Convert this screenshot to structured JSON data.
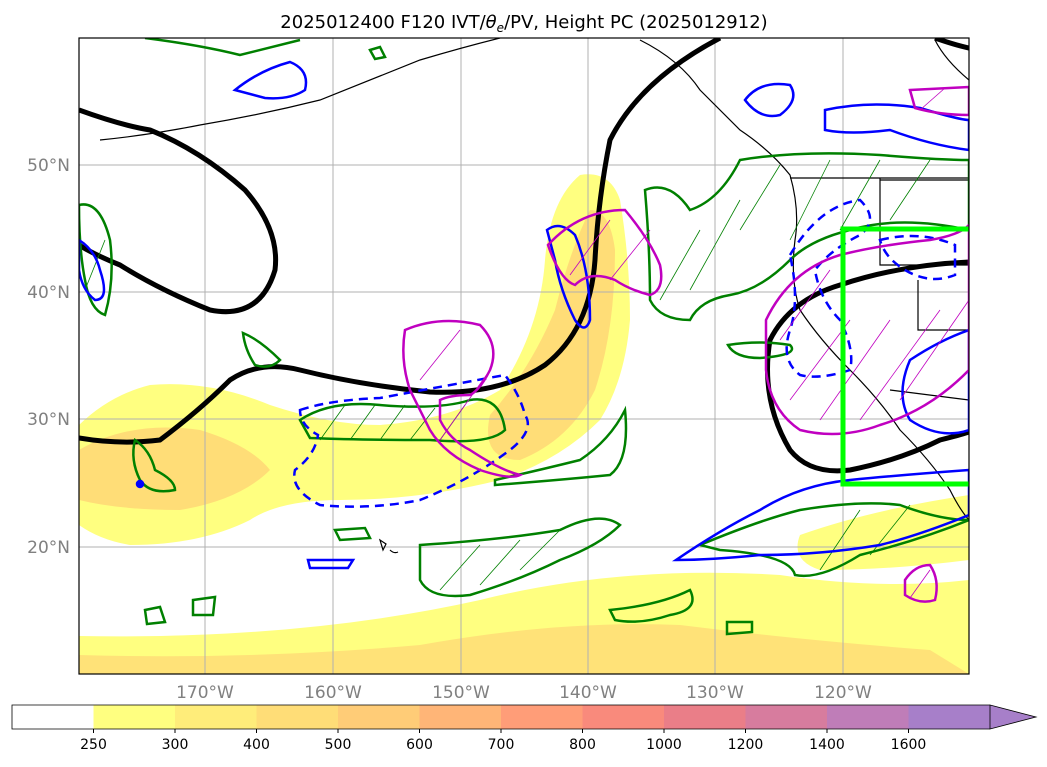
{
  "title_prefix": "2025012400 F120 IVT/",
  "title_theta": "θ",
  "title_theta_sub": "e",
  "title_suffix": "/PV, Height PC (2025012912)",
  "lat_labels": [
    "50°N",
    "40°N",
    "30°N",
    "20°N"
  ],
  "lon_labels": [
    "170°W",
    "160°W",
    "150°W",
    "140°W",
    "130°W",
    "120°W"
  ],
  "colorbar": {
    "levels": [
      "250",
      "300",
      "400",
      "500",
      "600",
      "700",
      "800",
      "1000",
      "1200",
      "1400",
      "1600"
    ],
    "colors": [
      "#ffffff",
      "#ffff80",
      "#ffed7a",
      "#ffdd77",
      "#ffcc77",
      "#ffb577",
      "#ff9d78",
      "#f98a7c",
      "#ea7e88",
      "#d77c9e",
      "#bf7db8",
      "#a77fc9"
    ]
  },
  "colors": {
    "height_contour": "#000000",
    "pv_contour": "#008000",
    "theta_contour": "#0000ff",
    "magenta_contour": "#c000c0",
    "highlight_box": "#00ff00",
    "coastline": "#000000",
    "grid": "#b0b0b0"
  }
}
